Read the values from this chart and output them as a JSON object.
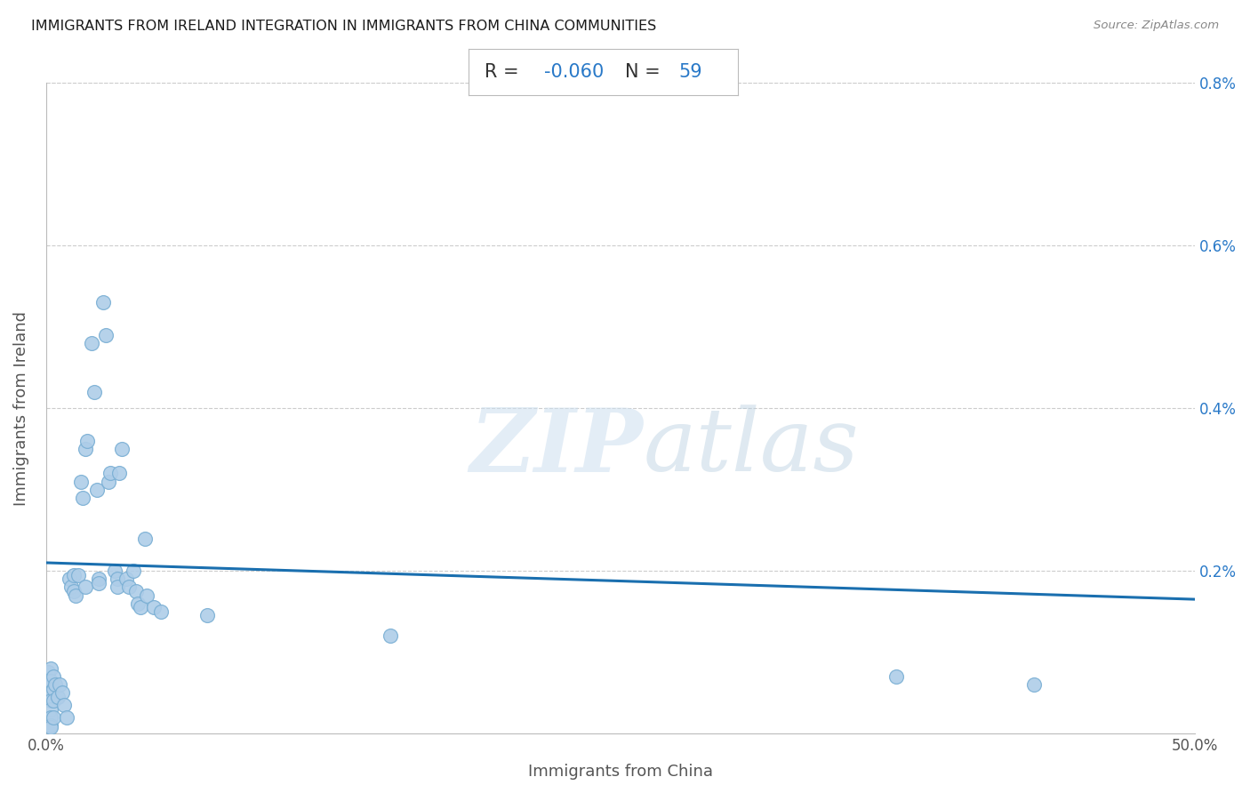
{
  "title": "IMMIGRANTS FROM IRELAND INTEGRATION IN IMMIGRANTS FROM CHINA COMMUNITIES",
  "source": "Source: ZipAtlas.com",
  "xlabel": "Immigrants from China",
  "ylabel": "Immigrants from Ireland",
  "R": -0.06,
  "N": 59,
  "xlim": [
    0,
    0.5
  ],
  "ylim": [
    0,
    0.008
  ],
  "xtick_pos": [
    0.0,
    0.1,
    0.2,
    0.3,
    0.4,
    0.5
  ],
  "xtick_labels": [
    "0.0%",
    "",
    "",
    "",
    "",
    "50.0%"
  ],
  "ytick_pos": [
    0.0,
    0.002,
    0.004,
    0.006,
    0.008
  ],
  "ytick_labels": [
    "",
    "0.2%",
    "0.4%",
    "0.6%",
    "0.8%"
  ],
  "scatter_color": "#aecde8",
  "scatter_edge_color": "#7aafd4",
  "line_color": "#1a6faf",
  "background_color": "#ffffff",
  "grid_color": "#cccccc",
  "title_color": "#1a1a1a",
  "source_color": "#888888",
  "ylabel_color": "#555555",
  "xlabel_color": "#555555",
  "ytick_color": "#2979c8",
  "annotation_r_color": "#2979c8",
  "annotation_n_color": "#2979c8",
  "annotation_label_color": "#333333",
  "watermark_zip_color": "#d5e8f5",
  "watermark_atlas_color": "#c5d8ec",
  "points": [
    [
      0.001,
      0.00075
    ],
    [
      0.001,
      0.0006
    ],
    [
      0.002,
      0.0008
    ],
    [
      0.002,
      0.00065
    ],
    [
      0.002,
      0.0005
    ],
    [
      0.002,
      0.0004
    ],
    [
      0.002,
      0.0003
    ],
    [
      0.002,
      0.0002
    ],
    [
      0.002,
      0.0001
    ],
    [
      0.002,
      8e-05
    ],
    [
      0.003,
      0.0007
    ],
    [
      0.003,
      0.00055
    ],
    [
      0.003,
      0.0004
    ],
    [
      0.003,
      0.0002
    ],
    [
      0.004,
      0.0006
    ],
    [
      0.005,
      0.00045
    ],
    [
      0.006,
      0.0006
    ],
    [
      0.007,
      0.0005
    ],
    [
      0.008,
      0.00035
    ],
    [
      0.009,
      0.0002
    ],
    [
      0.01,
      0.0019
    ],
    [
      0.011,
      0.0018
    ],
    [
      0.012,
      0.00195
    ],
    [
      0.012,
      0.00175
    ],
    [
      0.013,
      0.0017
    ],
    [
      0.014,
      0.00195
    ],
    [
      0.015,
      0.0031
    ],
    [
      0.016,
      0.0029
    ],
    [
      0.017,
      0.0035
    ],
    [
      0.017,
      0.0018
    ],
    [
      0.018,
      0.0036
    ],
    [
      0.02,
      0.0048
    ],
    [
      0.021,
      0.0042
    ],
    [
      0.022,
      0.003
    ],
    [
      0.023,
      0.0019
    ],
    [
      0.023,
      0.00185
    ],
    [
      0.025,
      0.0053
    ],
    [
      0.026,
      0.0049
    ],
    [
      0.027,
      0.0031
    ],
    [
      0.028,
      0.0032
    ],
    [
      0.03,
      0.002
    ],
    [
      0.031,
      0.0019
    ],
    [
      0.031,
      0.0018
    ],
    [
      0.032,
      0.0032
    ],
    [
      0.033,
      0.0035
    ],
    [
      0.035,
      0.0019
    ],
    [
      0.036,
      0.0018
    ],
    [
      0.038,
      0.002
    ],
    [
      0.039,
      0.00175
    ],
    [
      0.04,
      0.0016
    ],
    [
      0.041,
      0.00155
    ],
    [
      0.043,
      0.0024
    ],
    [
      0.044,
      0.0017
    ],
    [
      0.047,
      0.00155
    ],
    [
      0.05,
      0.0015
    ],
    [
      0.07,
      0.00145
    ],
    [
      0.15,
      0.0012
    ],
    [
      0.37,
      0.0007
    ],
    [
      0.43,
      0.0006
    ]
  ],
  "line_x": [
    0.0,
    0.5
  ],
  "line_y": [
    0.0021,
    0.00165
  ]
}
